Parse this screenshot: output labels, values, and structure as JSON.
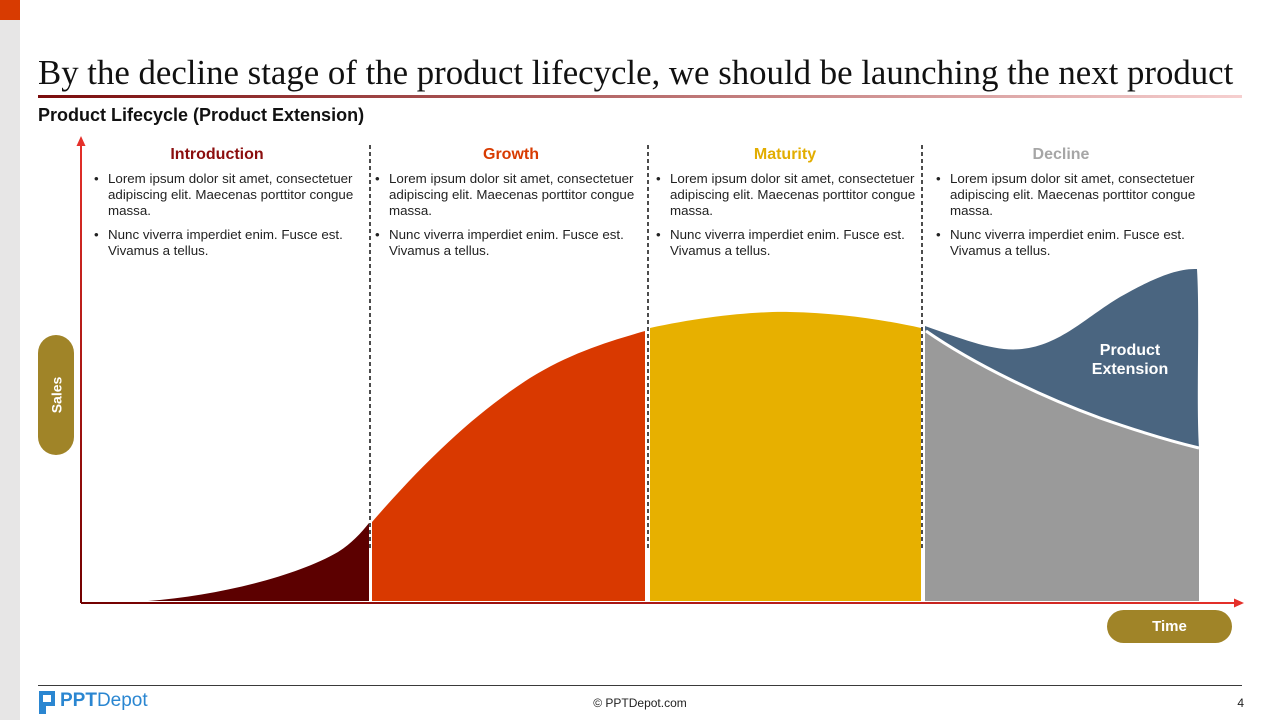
{
  "slide": {
    "title": "By the decline stage of the product lifecycle, we should be launching the next product",
    "subtitle": "Product Lifecycle (Product Extension)",
    "page_number": "4"
  },
  "colors": {
    "title_rule_start": "#7a0c0c",
    "title_rule_end": "#f6cfcf",
    "axis": "#e5302a",
    "axis_dark": "#720000",
    "pill": "#a08428",
    "divider": "#111111",
    "introduction_fill": "#5c0000",
    "growth_fill": "#d93900",
    "maturity_fill": "#e7b000",
    "decline_fill": "#9a9a9a",
    "extension_fill": "#4a6580",
    "separator": "#ffffff",
    "logo": "#2a86d1"
  },
  "stages": [
    {
      "name": "Introduction",
      "color": "#8b0e0e",
      "bullets": [
        "Lorem ipsum dolor sit amet, consectetuer adipiscing elit. Maecenas porttitor congue massa.",
        "Nunc viverra imperdiet enim. Fusce est. Vivamus a tellus."
      ]
    },
    {
      "name": "Growth",
      "color": "#d83b01",
      "bullets": [
        "Lorem ipsum dolor sit amet, consectetuer adipiscing elit. Maecenas porttitor congue massa.",
        "Nunc viverra imperdiet enim. Fusce est. Vivamus a tellus."
      ]
    },
    {
      "name": "Maturity",
      "color": "#e2ad00",
      "bullets": [
        "Lorem ipsum dolor sit amet, consectetuer adipiscing elit. Maecenas porttitor congue massa.",
        "Nunc viverra imperdiet enim. Fusce est. Vivamus a tellus."
      ]
    },
    {
      "name": "Decline",
      "color": "#a6a6a6",
      "bullets": [
        "Lorem ipsum dolor sit amet, consectetuer adipiscing elit. Maecenas porttitor congue massa.",
        "Nunc viverra imperdiet enim. Fusce est. Vivamus a tellus."
      ]
    }
  ],
  "axes": {
    "y_label": "Sales",
    "x_label": "Time"
  },
  "extension_label": "Product Extension",
  "footer": {
    "logo_bold": "PPT",
    "logo_regular": "Depot",
    "copyright": "© PPTDepot.com"
  }
}
